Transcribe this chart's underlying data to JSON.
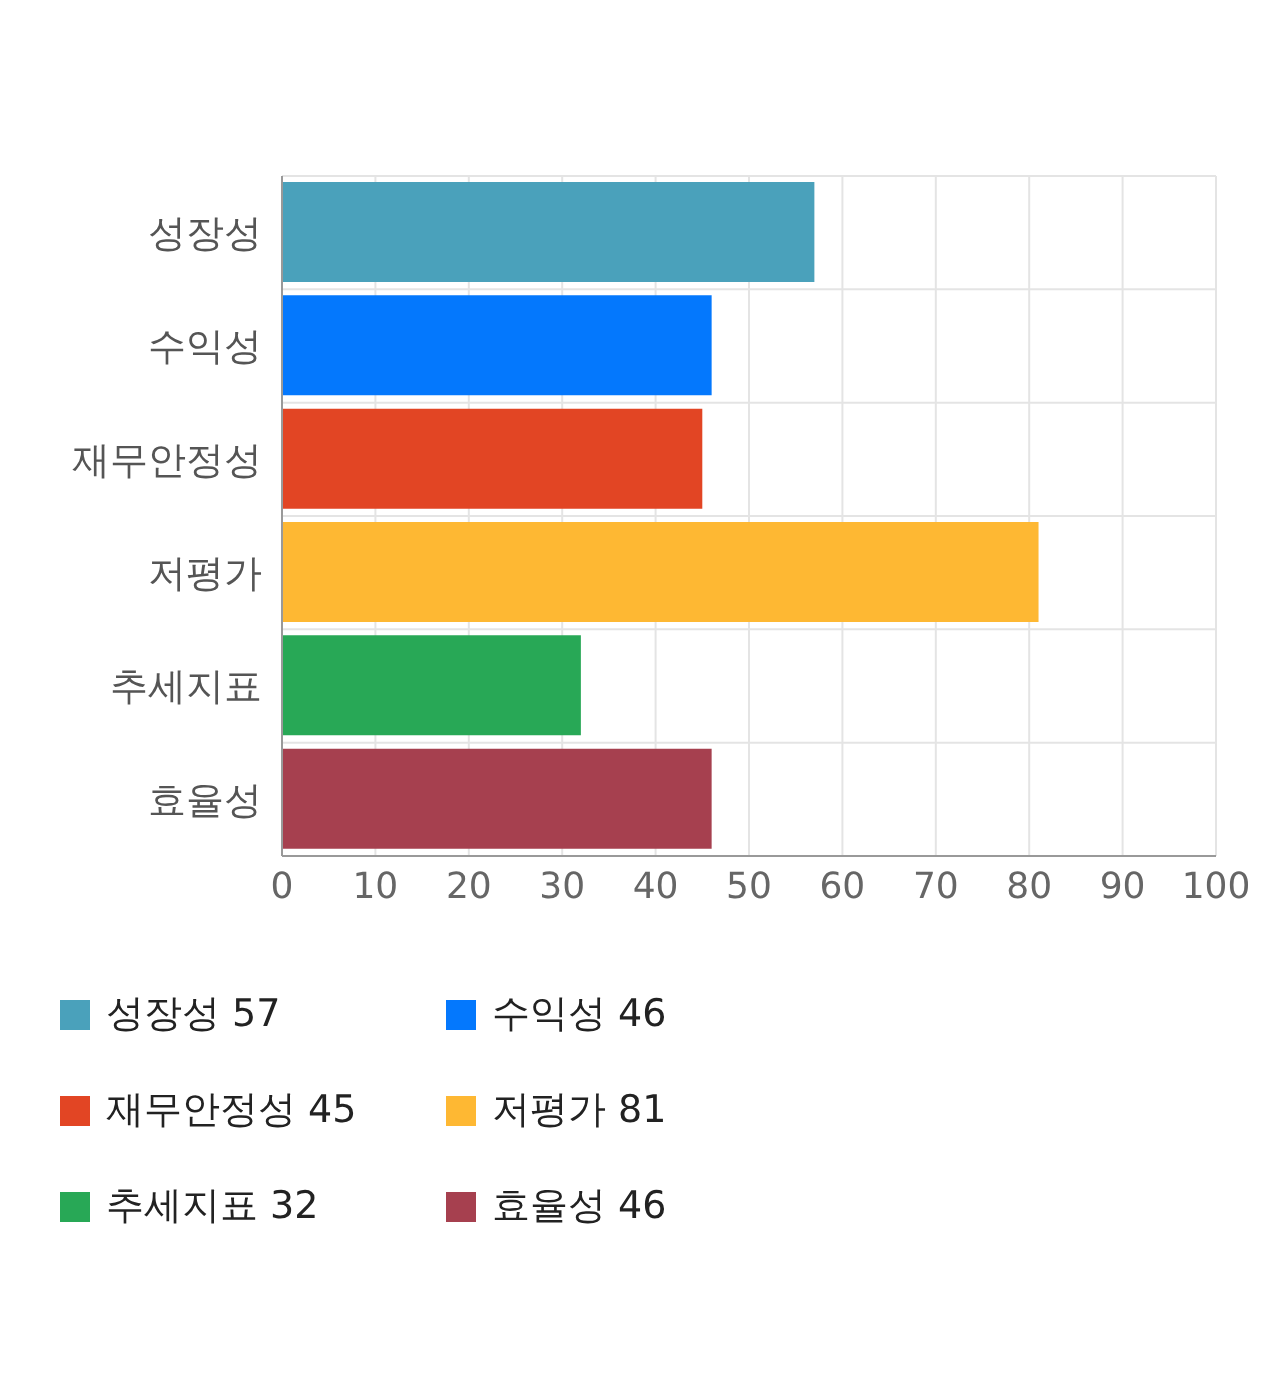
{
  "chart_data": {
    "type": "bar",
    "orientation": "horizontal",
    "stacked": true,
    "categories": [
      "성장성",
      "수익성",
      "재무안정성",
      "저평가",
      "추세지표",
      "효율성"
    ],
    "series": [
      {
        "name": "성장성 57",
        "color": "#4aa1bb",
        "values": [
          57,
          null,
          null,
          null,
          null,
          null
        ]
      },
      {
        "name": "수익성 46",
        "color": "#0478fd",
        "values": [
          null,
          46,
          null,
          null,
          null,
          null
        ]
      },
      {
        "name": "재무안정성 45",
        "color": "#e24524",
        "values": [
          null,
          null,
          45,
          null,
          null,
          null
        ]
      },
      {
        "name": "저평가 81",
        "color": "#feb833",
        "values": [
          null,
          null,
          null,
          81,
          null,
          null
        ]
      },
      {
        "name": "추세지표 32",
        "color": "#28a856",
        "values": [
          null,
          null,
          null,
          null,
          32,
          null
        ]
      },
      {
        "name": "효율성 46",
        "color": "#a6404f",
        "values": [
          null,
          null,
          null,
          null,
          null,
          46
        ]
      }
    ],
    "xlim": [
      0,
      100
    ],
    "xticks": [
      0,
      10,
      20,
      30,
      40,
      50,
      60,
      70,
      80,
      90,
      100
    ],
    "grid": true,
    "legend": "bottom"
  }
}
